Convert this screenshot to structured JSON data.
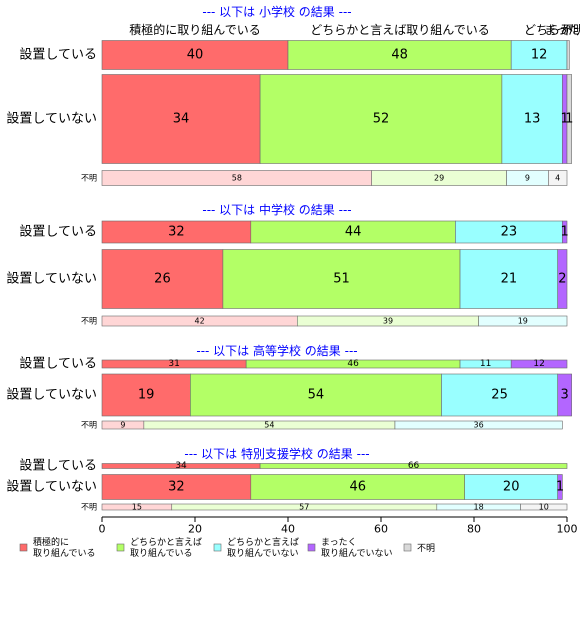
{
  "chart_data": {
    "type": "bar",
    "orientation": "horizontal",
    "stacked": "percent",
    "xlim": [
      0,
      100
    ],
    "x_ticks": [
      "0",
      "20",
      "40",
      "60",
      "80",
      "100"
    ],
    "header_labels": [
      "積極的に取り組んでいる",
      "どちらかと言えば取り組んでいる",
      "どちらか",
      "まった",
      "不明"
    ],
    "legend": {
      "position": "bottom",
      "items": [
        {
          "label": "積極的に\n取り組んでいる",
          "color": "#FF6B6B"
        },
        {
          "label": "どちらかと言えば\n取り組んでいる",
          "color": "#B3FF66"
        },
        {
          "label": "どちらかと言えば\n取り組んでいない",
          "color": "#99FFFF"
        },
        {
          "label": "まったく\n取り組んでいない",
          "color": "#B366FF"
        },
        {
          "label": "不明",
          "color": "#D9D9D9"
        }
      ]
    },
    "panels": [
      {
        "title": "--- 以下は 小学校 の結果 ---",
        "rows": [
          {
            "label": "設置している",
            "size": "large",
            "values": [
              40,
              48,
              12,
              0,
              0.5
            ],
            "labels": [
              "40",
              "48",
              "12",
              "",
              ""
            ]
          },
          {
            "label": "設置していない",
            "size": "large",
            "values": [
              34,
              52,
              13,
              1,
              1
            ],
            "labels": [
              "34",
              "52",
              "13",
              "1",
              "1"
            ]
          },
          {
            "label": "不明",
            "size": "small",
            "values": [
              58,
              29,
              9,
              0,
              4
            ],
            "labels": [
              "58",
              "29",
              "9",
              "",
              "4"
            ]
          }
        ]
      },
      {
        "title": "--- 以下は 中学校 の結果 ---",
        "rows": [
          {
            "label": "設置している",
            "size": "large",
            "values": [
              32,
              44,
              23,
              1,
              0
            ],
            "labels": [
              "32",
              "44",
              "23",
              "1",
              ""
            ]
          },
          {
            "label": "設置していない",
            "size": "large",
            "values": [
              26,
              51,
              21,
              2,
              0
            ],
            "labels": [
              "26",
              "51",
              "21",
              "2",
              ""
            ]
          },
          {
            "label": "不明",
            "size": "small",
            "values": [
              42,
              39,
              19,
              0,
              0
            ],
            "labels": [
              "42",
              "39",
              "19",
              "",
              ""
            ]
          }
        ]
      },
      {
        "title": "--- 以下は 高等学校 の結果 ---",
        "rows": [
          {
            "label": "設置している",
            "size": "medium",
            "values": [
              31,
              46,
              11,
              12,
              0
            ],
            "labels": [
              "31",
              "46",
              "11",
              "12",
              ""
            ]
          },
          {
            "label": "設置していない",
            "size": "large",
            "values": [
              19,
              54,
              25,
              3,
              0
            ],
            "labels": [
              "19",
              "54",
              "25",
              "3",
              ""
            ]
          },
          {
            "label": "不明",
            "size": "small",
            "values": [
              9,
              54,
              36,
              0,
              0
            ],
            "labels": [
              "9",
              "54",
              "36",
              "",
              ""
            ]
          }
        ]
      },
      {
        "title": "--- 以下は 特別支援学校 の結果 ---",
        "rows": [
          {
            "label": "設置している",
            "size": "tiny",
            "values": [
              34,
              66,
              0,
              0,
              0
            ],
            "labels": [
              "34",
              "66",
              "",
              "",
              ""
            ]
          },
          {
            "label": "設置していない",
            "size": "large",
            "values": [
              32,
              46,
              20,
              1,
              0
            ],
            "labels": [
              "32",
              "46",
              "20",
              "1",
              ""
            ]
          },
          {
            "label": "不明",
            "size": "small",
            "values": [
              15,
              57,
              18,
              0,
              10
            ],
            "labels": [
              "15",
              "57",
              "18",
              "",
              "10"
            ]
          }
        ]
      }
    ]
  }
}
